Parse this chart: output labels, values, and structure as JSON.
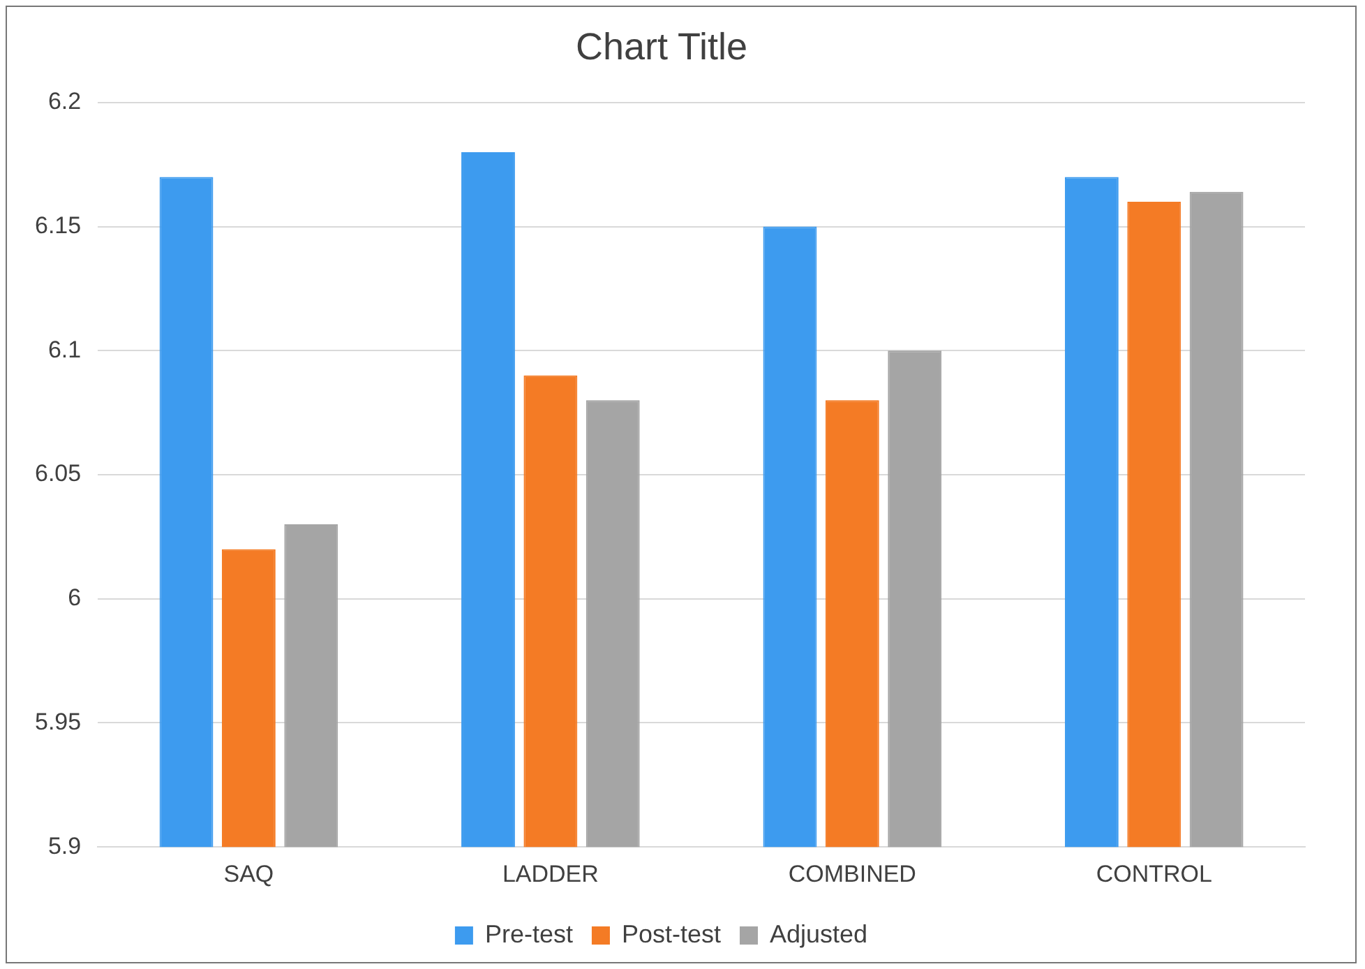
{
  "chart_data": {
    "type": "bar",
    "title": "Chart Title",
    "categories": [
      "SAQ",
      "LADDER",
      "COMBINED",
      "CONTROL"
    ],
    "series": [
      {
        "name": "Pre-test",
        "color": "#3d9bef",
        "values": [
          6.17,
          6.18,
          6.15,
          6.17
        ]
      },
      {
        "name": "Post-test",
        "color": "#f47b25",
        "values": [
          6.02,
          6.09,
          6.08,
          6.16
        ]
      },
      {
        "name": "Adjusted",
        "color": "#a5a5a5",
        "values": [
          6.03,
          6.08,
          6.1,
          6.164
        ]
      }
    ],
    "ylim": [
      5.9,
      6.2
    ],
    "yticks": [
      5.9,
      5.95,
      6,
      6.05,
      6.1,
      6.15,
      6.2
    ],
    "grid": "y",
    "legend": "bottom"
  }
}
